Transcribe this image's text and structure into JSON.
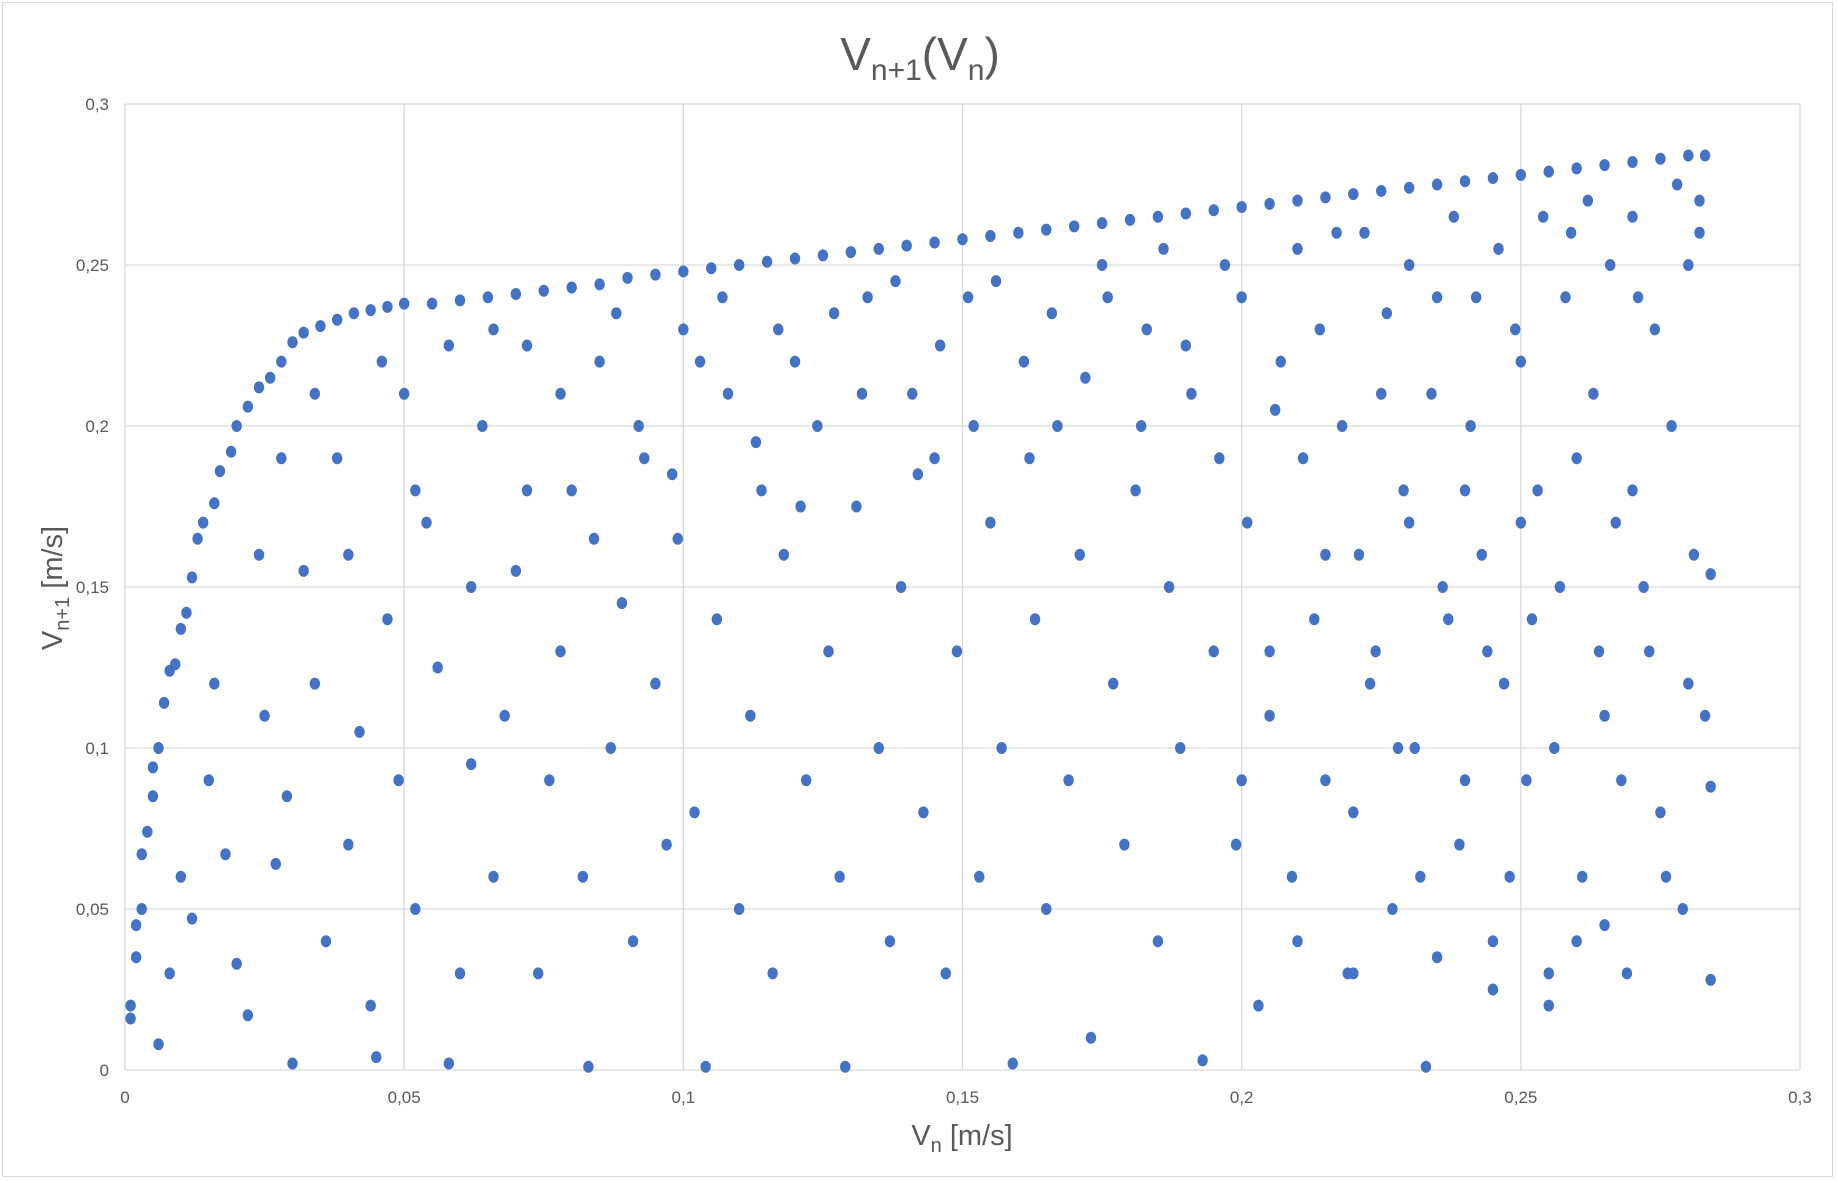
{
  "chart_data": {
    "type": "scatter",
    "title": {
      "main": "V",
      "sub1": "n+1",
      "mid": "(V",
      "sub2": "n",
      "end": ")"
    },
    "xlabel": {
      "main": "V",
      "sub": "n",
      "rest": " [m/s]"
    },
    "ylabel": {
      "main": "V",
      "sub": "n+1",
      "rest": " [m/s]"
    },
    "xlim": [
      0,
      0.3
    ],
    "ylim": [
      0,
      0.3
    ],
    "xticks": [
      "0",
      "0,05",
      "0,1",
      "0,15",
      "0,2",
      "0,25",
      "0,3"
    ],
    "yticks": [
      "0",
      "0,05",
      "0,1",
      "0,15",
      "0,2",
      "0,25",
      "0,3"
    ],
    "grid": true,
    "legend": "none",
    "marker_color": "#4472C4",
    "points": [
      [
        0.001,
        0.02
      ],
      [
        0.002,
        0.035
      ],
      [
        0.002,
        0.045
      ],
      [
        0.003,
        0.05
      ],
      [
        0.001,
        0.016
      ],
      [
        0.003,
        0.067
      ],
      [
        0.004,
        0.074
      ],
      [
        0.005,
        0.085
      ],
      [
        0.005,
        0.094
      ],
      [
        0.006,
        0.1
      ],
      [
        0.007,
        0.114
      ],
      [
        0.008,
        0.124
      ],
      [
        0.009,
        0.126
      ],
      [
        0.01,
        0.137
      ],
      [
        0.011,
        0.142
      ],
      [
        0.012,
        0.153
      ],
      [
        0.013,
        0.165
      ],
      [
        0.014,
        0.17
      ],
      [
        0.016,
        0.176
      ],
      [
        0.017,
        0.186
      ],
      [
        0.019,
        0.192
      ],
      [
        0.02,
        0.2
      ],
      [
        0.022,
        0.206
      ],
      [
        0.024,
        0.212
      ],
      [
        0.026,
        0.215
      ],
      [
        0.028,
        0.22
      ],
      [
        0.03,
        0.226
      ],
      [
        0.032,
        0.229
      ],
      [
        0.035,
        0.231
      ],
      [
        0.038,
        0.233
      ],
      [
        0.041,
        0.235
      ],
      [
        0.044,
        0.236
      ],
      [
        0.047,
        0.237
      ],
      [
        0.05,
        0.238
      ],
      [
        0.055,
        0.238
      ],
      [
        0.06,
        0.239
      ],
      [
        0.065,
        0.24
      ],
      [
        0.07,
        0.241
      ],
      [
        0.075,
        0.242
      ],
      [
        0.08,
        0.243
      ],
      [
        0.085,
        0.244
      ],
      [
        0.09,
        0.246
      ],
      [
        0.095,
        0.247
      ],
      [
        0.1,
        0.248
      ],
      [
        0.105,
        0.249
      ],
      [
        0.11,
        0.25
      ],
      [
        0.115,
        0.251
      ],
      [
        0.12,
        0.252
      ],
      [
        0.125,
        0.253
      ],
      [
        0.13,
        0.254
      ],
      [
        0.135,
        0.255
      ],
      [
        0.14,
        0.256
      ],
      [
        0.145,
        0.257
      ],
      [
        0.15,
        0.258
      ],
      [
        0.155,
        0.259
      ],
      [
        0.16,
        0.26
      ],
      [
        0.165,
        0.261
      ],
      [
        0.17,
        0.262
      ],
      [
        0.175,
        0.263
      ],
      [
        0.18,
        0.264
      ],
      [
        0.185,
        0.265
      ],
      [
        0.19,
        0.266
      ],
      [
        0.195,
        0.267
      ],
      [
        0.2,
        0.268
      ],
      [
        0.205,
        0.269
      ],
      [
        0.21,
        0.27
      ],
      [
        0.215,
        0.271
      ],
      [
        0.22,
        0.272
      ],
      [
        0.225,
        0.273
      ],
      [
        0.23,
        0.274
      ],
      [
        0.235,
        0.275
      ],
      [
        0.24,
        0.276
      ],
      [
        0.245,
        0.277
      ],
      [
        0.25,
        0.278
      ],
      [
        0.255,
        0.279
      ],
      [
        0.26,
        0.28
      ],
      [
        0.265,
        0.281
      ],
      [
        0.27,
        0.282
      ],
      [
        0.275,
        0.283
      ],
      [
        0.28,
        0.284
      ],
      [
        0.283,
        0.284
      ],
      [
        0.008,
        0.03
      ],
      [
        0.012,
        0.047
      ],
      [
        0.015,
        0.09
      ],
      [
        0.018,
        0.067
      ],
      [
        0.02,
        0.033
      ],
      [
        0.022,
        0.017
      ],
      [
        0.025,
        0.11
      ],
      [
        0.027,
        0.064
      ],
      [
        0.029,
        0.085
      ],
      [
        0.03,
        0.002
      ],
      [
        0.032,
        0.155
      ],
      [
        0.034,
        0.12
      ],
      [
        0.036,
        0.04
      ],
      [
        0.038,
        0.19
      ],
      [
        0.04,
        0.07
      ],
      [
        0.042,
        0.105
      ],
      [
        0.044,
        0.02
      ],
      [
        0.045,
        0.004
      ],
      [
        0.047,
        0.14
      ],
      [
        0.049,
        0.09
      ],
      [
        0.05,
        0.21
      ],
      [
        0.052,
        0.05
      ],
      [
        0.054,
        0.17
      ],
      [
        0.056,
        0.125
      ],
      [
        0.058,
        0.002
      ],
      [
        0.06,
        0.03
      ],
      [
        0.062,
        0.095
      ],
      [
        0.064,
        0.2
      ],
      [
        0.066,
        0.06
      ],
      [
        0.068,
        0.11
      ],
      [
        0.07,
        0.155
      ],
      [
        0.072,
        0.225
      ],
      [
        0.074,
        0.03
      ],
      [
        0.076,
        0.09
      ],
      [
        0.078,
        0.13
      ],
      [
        0.08,
        0.18
      ],
      [
        0.082,
        0.06
      ],
      [
        0.083,
        0.001
      ],
      [
        0.085,
        0.22
      ],
      [
        0.087,
        0.1
      ],
      [
        0.089,
        0.145
      ],
      [
        0.091,
        0.04
      ],
      [
        0.093,
        0.19
      ],
      [
        0.095,
        0.12
      ],
      [
        0.097,
        0.07
      ],
      [
        0.099,
        0.165
      ],
      [
        0.1,
        0.23
      ],
      [
        0.102,
        0.08
      ],
      [
        0.104,
        0.001
      ],
      [
        0.106,
        0.14
      ],
      [
        0.108,
        0.21
      ],
      [
        0.11,
        0.05
      ],
      [
        0.112,
        0.11
      ],
      [
        0.114,
        0.18
      ],
      [
        0.116,
        0.03
      ],
      [
        0.118,
        0.16
      ],
      [
        0.12,
        0.22
      ],
      [
        0.122,
        0.09
      ],
      [
        0.124,
        0.2
      ],
      [
        0.126,
        0.13
      ],
      [
        0.128,
        0.06
      ],
      [
        0.129,
        0.001
      ],
      [
        0.131,
        0.175
      ],
      [
        0.133,
        0.24
      ],
      [
        0.135,
        0.1
      ],
      [
        0.137,
        0.04
      ],
      [
        0.139,
        0.15
      ],
      [
        0.141,
        0.21
      ],
      [
        0.143,
        0.08
      ],
      [
        0.145,
        0.19
      ],
      [
        0.147,
        0.03
      ],
      [
        0.149,
        0.13
      ],
      [
        0.151,
        0.24
      ],
      [
        0.153,
        0.06
      ],
      [
        0.155,
        0.17
      ],
      [
        0.157,
        0.1
      ],
      [
        0.159,
        0.002
      ],
      [
        0.161,
        0.22
      ],
      [
        0.163,
        0.14
      ],
      [
        0.165,
        0.05
      ],
      [
        0.167,
        0.2
      ],
      [
        0.169,
        0.09
      ],
      [
        0.171,
        0.16
      ],
      [
        0.173,
        0.01
      ],
      [
        0.175,
        0.25
      ],
      [
        0.177,
        0.12
      ],
      [
        0.179,
        0.07
      ],
      [
        0.181,
        0.18
      ],
      [
        0.183,
        0.23
      ],
      [
        0.185,
        0.04
      ],
      [
        0.187,
        0.15
      ],
      [
        0.189,
        0.1
      ],
      [
        0.191,
        0.21
      ],
      [
        0.193,
        0.003
      ],
      [
        0.195,
        0.13
      ],
      [
        0.197,
        0.25
      ],
      [
        0.199,
        0.07
      ],
      [
        0.201,
        0.17
      ],
      [
        0.203,
        0.02
      ],
      [
        0.205,
        0.11
      ],
      [
        0.207,
        0.22
      ],
      [
        0.209,
        0.06
      ],
      [
        0.211,
        0.19
      ],
      [
        0.213,
        0.14
      ],
      [
        0.215,
        0.09
      ],
      [
        0.217,
        0.26
      ],
      [
        0.219,
        0.03
      ],
      [
        0.221,
        0.16
      ],
      [
        0.223,
        0.12
      ],
      [
        0.225,
        0.21
      ],
      [
        0.227,
        0.05
      ],
      [
        0.229,
        0.18
      ],
      [
        0.231,
        0.1
      ],
      [
        0.233,
        0.001
      ],
      [
        0.235,
        0.24
      ],
      [
        0.237,
        0.14
      ],
      [
        0.239,
        0.07
      ],
      [
        0.241,
        0.2
      ],
      [
        0.243,
        0.16
      ],
      [
        0.245,
        0.04
      ],
      [
        0.247,
        0.12
      ],
      [
        0.249,
        0.23
      ],
      [
        0.251,
        0.09
      ],
      [
        0.253,
        0.18
      ],
      [
        0.255,
        0.02
      ],
      [
        0.257,
        0.15
      ],
      [
        0.259,
        0.26
      ],
      [
        0.261,
        0.06
      ],
      [
        0.263,
        0.21
      ],
      [
        0.265,
        0.11
      ],
      [
        0.267,
        0.17
      ],
      [
        0.269,
        0.03
      ],
      [
        0.271,
        0.24
      ],
      [
        0.273,
        0.13
      ],
      [
        0.275,
        0.08
      ],
      [
        0.277,
        0.2
      ],
      [
        0.279,
        0.05
      ],
      [
        0.281,
        0.16
      ],
      [
        0.282,
        0.27
      ],
      [
        0.283,
        0.11
      ],
      [
        0.284,
        0.154
      ],
      [
        0.284,
        0.088
      ],
      [
        0.284,
        0.028
      ],
      [
        0.006,
        0.008
      ],
      [
        0.01,
        0.06
      ],
      [
        0.016,
        0.12
      ],
      [
        0.024,
        0.16
      ],
      [
        0.028,
        0.19
      ],
      [
        0.034,
        0.21
      ],
      [
        0.04,
        0.16
      ],
      [
        0.046,
        0.22
      ],
      [
        0.052,
        0.18
      ],
      [
        0.058,
        0.225
      ],
      [
        0.062,
        0.15
      ],
      [
        0.066,
        0.23
      ],
      [
        0.072,
        0.18
      ],
      [
        0.078,
        0.21
      ],
      [
        0.084,
        0.165
      ],
      [
        0.088,
        0.235
      ],
      [
        0.092,
        0.2
      ],
      [
        0.098,
        0.185
      ],
      [
        0.103,
        0.22
      ],
      [
        0.107,
        0.24
      ],
      [
        0.113,
        0.195
      ],
      [
        0.117,
        0.23
      ],
      [
        0.121,
        0.175
      ],
      [
        0.127,
        0.235
      ],
      [
        0.132,
        0.21
      ],
      [
        0.138,
        0.245
      ],
      [
        0.142,
        0.185
      ],
      [
        0.146,
        0.225
      ],
      [
        0.152,
        0.2
      ],
      [
        0.156,
        0.245
      ],
      [
        0.162,
        0.19
      ],
      [
        0.166,
        0.235
      ],
      [
        0.172,
        0.215
      ],
      [
        0.176,
        0.24
      ],
      [
        0.182,
        0.2
      ],
      [
        0.186,
        0.255
      ],
      [
        0.19,
        0.225
      ],
      [
        0.196,
        0.19
      ],
      [
        0.2,
        0.24
      ],
      [
        0.206,
        0.205
      ],
      [
        0.21,
        0.255
      ],
      [
        0.214,
        0.23
      ],
      [
        0.218,
        0.2
      ],
      [
        0.222,
        0.26
      ],
      [
        0.226,
        0.235
      ],
      [
        0.23,
        0.25
      ],
      [
        0.234,
        0.21
      ],
      [
        0.238,
        0.265
      ],
      [
        0.242,
        0.24
      ],
      [
        0.246,
        0.255
      ],
      [
        0.25,
        0.22
      ],
      [
        0.254,
        0.265
      ],
      [
        0.258,
        0.24
      ],
      [
        0.262,
        0.27
      ],
      [
        0.266,
        0.25
      ],
      [
        0.27,
        0.265
      ],
      [
        0.274,
        0.23
      ],
      [
        0.278,
        0.275
      ],
      [
        0.28,
        0.25
      ],
      [
        0.282,
        0.26
      ],
      [
        0.2,
        0.09
      ],
      [
        0.205,
        0.13
      ],
      [
        0.21,
        0.04
      ],
      [
        0.215,
        0.16
      ],
      [
        0.22,
        0.08
      ],
      [
        0.224,
        0.13
      ],
      [
        0.228,
        0.1
      ],
      [
        0.232,
        0.06
      ],
      [
        0.236,
        0.15
      ],
      [
        0.24,
        0.09
      ],
      [
        0.244,
        0.13
      ],
      [
        0.248,
        0.06
      ],
      [
        0.252,
        0.14
      ],
      [
        0.256,
        0.1
      ],
      [
        0.26,
        0.04
      ],
      [
        0.264,
        0.13
      ],
      [
        0.268,
        0.09
      ],
      [
        0.272,
        0.15
      ],
      [
        0.276,
        0.06
      ],
      [
        0.28,
        0.12
      ],
      [
        0.23,
        0.17
      ],
      [
        0.24,
        0.18
      ],
      [
        0.25,
        0.17
      ],
      [
        0.26,
        0.19
      ],
      [
        0.27,
        0.18
      ],
      [
        0.22,
        0.03
      ],
      [
        0.235,
        0.035
      ],
      [
        0.245,
        0.025
      ],
      [
        0.255,
        0.03
      ],
      [
        0.265,
        0.045
      ]
    ]
  }
}
